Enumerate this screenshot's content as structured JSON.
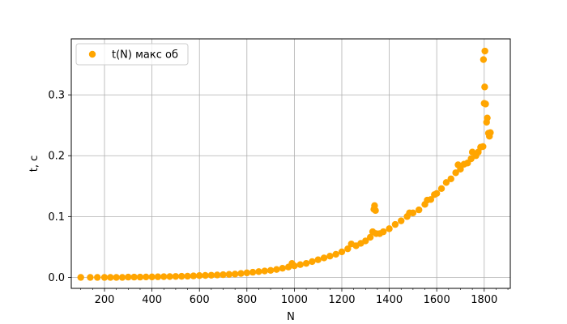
{
  "chart_data": {
    "type": "scatter",
    "title": "",
    "xlabel": "N",
    "ylabel": "t, c",
    "xlim": [
      60,
      1910
    ],
    "ylim": [
      -0.018,
      0.392
    ],
    "xticks": [
      200,
      400,
      600,
      800,
      1000,
      1200,
      1400,
      1600,
      1800
    ],
    "xtick_labels": [
      "200",
      "400",
      "600",
      "800",
      "1000",
      "1200",
      "1400",
      "1600",
      "1800"
    ],
    "yticks": [
      0.0,
      0.1,
      0.2,
      0.3
    ],
    "ytick_labels": [
      "0.0",
      "0.1",
      "0.2",
      "0.3"
    ],
    "x_minor_step": 50,
    "grid": true,
    "legend_position": "top-left",
    "series": [
      {
        "name": "t(N) макс об",
        "color": "#ffa500",
        "points": [
          [
            100,
            0.0
          ],
          [
            140,
            0.0
          ],
          [
            170,
            0.0
          ],
          [
            200,
            0.0
          ],
          [
            225,
            0.0
          ],
          [
            250,
            0.0
          ],
          [
            275,
            0.0
          ],
          [
            300,
            0.0005
          ],
          [
            325,
            0.0005
          ],
          [
            350,
            0.0005
          ],
          [
            375,
            0.0007
          ],
          [
            400,
            0.0008
          ],
          [
            425,
            0.001
          ],
          [
            450,
            0.0012
          ],
          [
            475,
            0.0014
          ],
          [
            500,
            0.0016
          ],
          [
            525,
            0.0018
          ],
          [
            550,
            0.002
          ],
          [
            575,
            0.0025
          ],
          [
            600,
            0.003
          ],
          [
            625,
            0.0033
          ],
          [
            650,
            0.0036
          ],
          [
            675,
            0.004
          ],
          [
            700,
            0.0045
          ],
          [
            725,
            0.005
          ],
          [
            750,
            0.0055
          ],
          [
            775,
            0.0065
          ],
          [
            800,
            0.0075
          ],
          [
            825,
            0.0085
          ],
          [
            850,
            0.0095
          ],
          [
            875,
            0.0105
          ],
          [
            900,
            0.0115
          ],
          [
            925,
            0.013
          ],
          [
            950,
            0.015
          ],
          [
            975,
            0.017
          ],
          [
            1000,
            0.019
          ],
          [
            990,
            0.023
          ],
          [
            1025,
            0.021
          ],
          [
            1050,
            0.023
          ],
          [
            1075,
            0.026
          ],
          [
            1100,
            0.029
          ],
          [
            1125,
            0.032
          ],
          [
            1150,
            0.035
          ],
          [
            1175,
            0.038
          ],
          [
            1200,
            0.042
          ],
          [
            1225,
            0.047
          ],
          [
            1240,
            0.055
          ],
          [
            1260,
            0.052
          ],
          [
            1280,
            0.056
          ],
          [
            1300,
            0.06
          ],
          [
            1320,
            0.066
          ],
          [
            1330,
            0.075
          ],
          [
            1335,
            0.112
          ],
          [
            1338,
            0.118
          ],
          [
            1342,
            0.11
          ],
          [
            1345,
            0.072
          ],
          [
            1360,
            0.072
          ],
          [
            1375,
            0.075
          ],
          [
            1400,
            0.08
          ],
          [
            1425,
            0.087
          ],
          [
            1450,
            0.093
          ],
          [
            1475,
            0.1
          ],
          [
            1485,
            0.106
          ],
          [
            1500,
            0.106
          ],
          [
            1525,
            0.111
          ],
          [
            1550,
            0.12
          ],
          [
            1560,
            0.127
          ],
          [
            1575,
            0.128
          ],
          [
            1590,
            0.136
          ],
          [
            1600,
            0.138
          ],
          [
            1620,
            0.146
          ],
          [
            1640,
            0.156
          ],
          [
            1660,
            0.162
          ],
          [
            1680,
            0.172
          ],
          [
            1690,
            0.185
          ],
          [
            1700,
            0.178
          ],
          [
            1715,
            0.186
          ],
          [
            1730,
            0.188
          ],
          [
            1745,
            0.195
          ],
          [
            1750,
            0.206
          ],
          [
            1765,
            0.2
          ],
          [
            1775,
            0.206
          ],
          [
            1785,
            0.214
          ],
          [
            1795,
            0.215
          ],
          [
            1800,
            0.286
          ],
          [
            1797,
            0.358
          ],
          [
            1803,
            0.372
          ],
          [
            1802,
            0.313
          ],
          [
            1806,
            0.285
          ],
          [
            1810,
            0.255
          ],
          [
            1813,
            0.262
          ],
          [
            1818,
            0.237
          ],
          [
            1822,
            0.232
          ],
          [
            1826,
            0.238
          ]
        ]
      }
    ]
  }
}
